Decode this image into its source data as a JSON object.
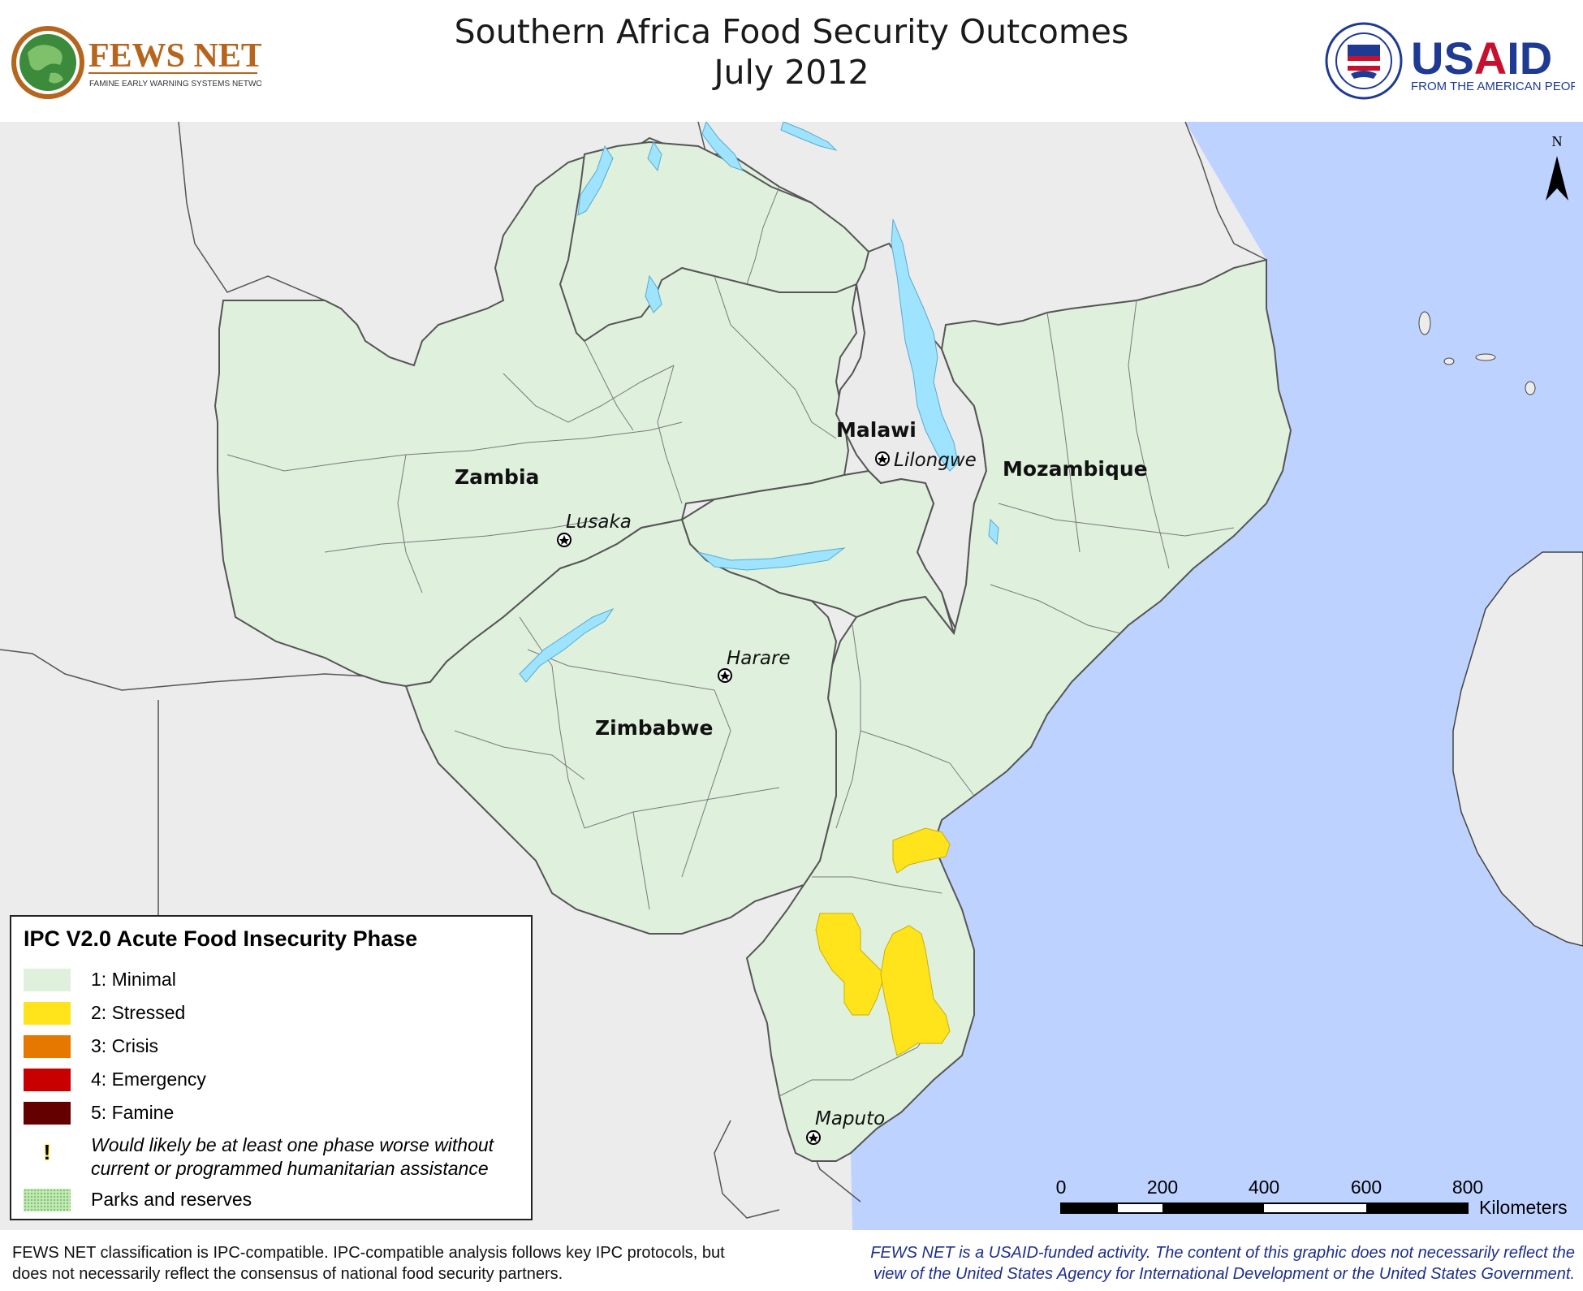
{
  "header": {
    "title_line1": "Southern Africa Food Security Outcomes",
    "title_line2": "July 2012"
  },
  "logos": {
    "fews_name": "FEWS NET",
    "fews_tagline": "FAMINE EARLY WARNING SYSTEMS NETWORK",
    "usaid_name": "USAID",
    "usaid_tagline": "FROM THE AMERICAN PEOPLE"
  },
  "map": {
    "countries": [
      "Zambia",
      "Malawi",
      "Mozambique",
      "Zimbabwe"
    ],
    "cities": [
      "Lusaka",
      "Lilongwe",
      "Harare",
      "Maputo"
    ],
    "north_label": "N",
    "colors": {
      "ocean": "#bed2ff",
      "land_outside": "#ececec",
      "minimal": "#dff0dd",
      "stressed": "#ffe41c",
      "crisis": "#e67800",
      "emergency": "#c80000",
      "famine": "#640000",
      "water": "#9ee3ff"
    }
  },
  "scale_bar": {
    "ticks": [
      "0",
      "200",
      "400",
      "600",
      "800"
    ],
    "unit": "Kilometers"
  },
  "legend": {
    "title": "IPC V2.0 Acute Food Insecurity Phase",
    "items": [
      {
        "label": "1: Minimal",
        "color": "#dff0dd"
      },
      {
        "label": "2: Stressed",
        "color": "#ffe41c"
      },
      {
        "label": "3: Crisis",
        "color": "#e67800"
      },
      {
        "label": "4: Emergency",
        "color": "#c80000"
      },
      {
        "label": "5: Famine",
        "color": "#640000"
      }
    ],
    "assistance_symbol": "!",
    "assistance_note": "Would likely be at least one phase worse without current or programmed humanitarian assistance",
    "parks_label": "Parks and reserves"
  },
  "footer": {
    "left": "FEWS NET classification is IPC-compatible. IPC-compatible analysis follows key IPC protocols, but does not necessarily reflect the consensus of national food security partners.",
    "right": "FEWS NET is a USAID-funded activity. The content of this graphic does not necessarily reflect the view of the United States Agency for International Development or the United States Government."
  }
}
